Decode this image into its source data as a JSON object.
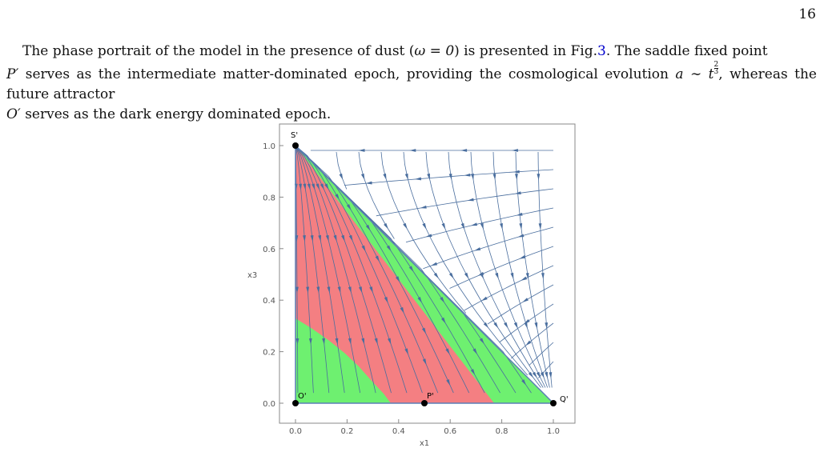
{
  "page_number": "16",
  "paragraph": {
    "part1": "The phase portrait of the model in the presence of dust (",
    "omega_eq": "ω = 0",
    "part2": ") is presented in Fig.",
    "fig_ref": "3",
    "part3": ". The saddle fixed point ",
    "p_prime": "P′",
    "part4": " serves as the intermediate matter-dominated epoch, providing the cosmological evolution ",
    "a_sim_t": "a ∼ t",
    "exp_num": "2",
    "exp_den": "3",
    "part5": ", whereas the future attractor ",
    "o_prime": "O′",
    "part6": " serves as the dark energy dominated epoch."
  },
  "figure": {
    "xlabel": "x1",
    "ylabel": "x3",
    "x_ticks": [
      "0.0",
      "0.2",
      "0.4",
      "0.6",
      "0.8",
      "1.0"
    ],
    "y_ticks": [
      "0.0",
      "0.2",
      "0.4",
      "0.6",
      "0.8",
      "1.0"
    ],
    "points": [
      {
        "label": "S'",
        "x": 0,
        "y": 1
      },
      {
        "label": "O'",
        "x": 0,
        "y": 0
      },
      {
        "label": "P'",
        "x": 0.5,
        "y": 0
      },
      {
        "label": "Q'",
        "x": 1,
        "y": 0
      }
    ],
    "colors": {
      "green_region": "#6ef070",
      "red_region": "#f47f82",
      "stream": "#4a6e9e",
      "frame": "#888888"
    }
  }
}
